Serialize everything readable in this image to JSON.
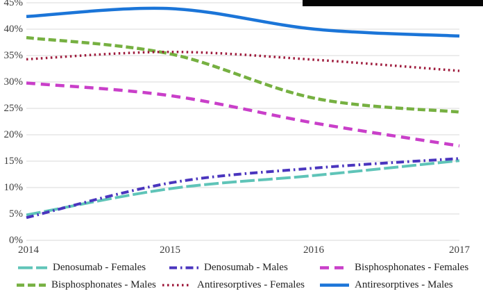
{
  "decorations": {
    "top_right_bar_color": "#050505",
    "background_color": "#ffffff"
  },
  "chart_data": {
    "type": "line",
    "title": "",
    "xlabel": "",
    "ylabel": "",
    "x_labels": [
      "2014",
      "2015",
      "2016",
      "2017"
    ],
    "y_tick_labels": [
      "0%",
      "5%",
      "10%",
      "15%",
      "20%",
      "25%",
      "30%",
      "35%",
      "40%",
      "45%"
    ],
    "ylim": [
      0,
      45.5
    ],
    "grid": true,
    "gridline_color": "#d9d9d9",
    "smoothed": true,
    "legend_position": "bottom",
    "series": [
      {
        "name": "Denosumab - Females",
        "color": "#5FC4B8",
        "dash": "long-dash",
        "dasharray": "21 5",
        "width": 4,
        "values": [
          4.8,
          9.8,
          12.3,
          15.1
        ]
      },
      {
        "name": "Denosumab - Males",
        "color": "#4A35BE",
        "dash": "dash-dot",
        "dasharray": "11 5 2.5 5",
        "width": 4,
        "values": [
          4.3,
          10.9,
          13.7,
          15.5
        ]
      },
      {
        "name": "Bisphosphonates - Females",
        "color": "#C93FC9",
        "dash": "dash",
        "dasharray": "13 8",
        "width": 4.5,
        "values": [
          29.8,
          27.4,
          22.2,
          17.9
        ]
      },
      {
        "name": "Bisphosphonates - Males",
        "color": "#76B041",
        "dash": "dash",
        "dasharray": "11 5",
        "width": 4.5,
        "values": [
          38.4,
          35.3,
          26.9,
          24.3
        ]
      },
      {
        "name": "Antiresorptives - Females",
        "color": "#9E1B3C",
        "dash": "dot",
        "dasharray": "2.5 4.5",
        "width": 3.5,
        "values": [
          34.3,
          35.7,
          34.2,
          32.1
        ]
      },
      {
        "name": "Antiresorptives - Males",
        "color": "#1B75D8",
        "dash": "solid",
        "dasharray": "",
        "width": 4.5,
        "values": [
          42.4,
          43.9,
          40.0,
          38.7
        ]
      }
    ]
  }
}
